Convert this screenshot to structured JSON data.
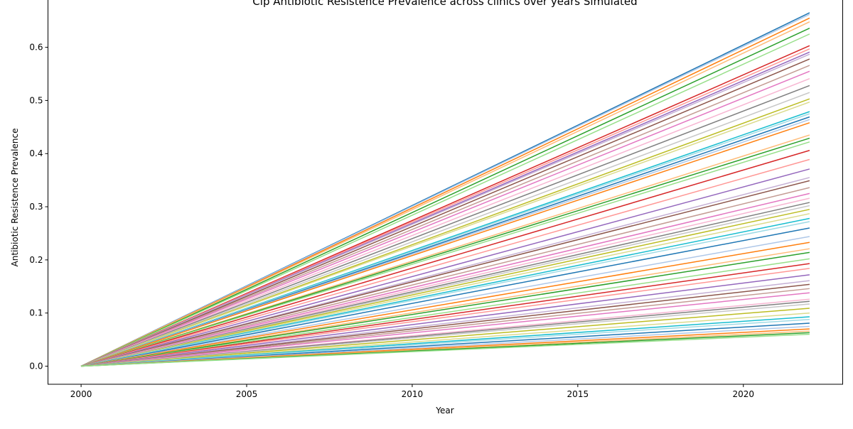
{
  "chart_data": {
    "type": "line",
    "title": "Cip Antibiotic Resistence Prevalence across clinics over years Simulated",
    "xlabel": "Year",
    "ylabel": "Antibiotic Resistence Prevalence",
    "xlim": [
      1999,
      2023
    ],
    "ylim": [
      -0.034,
      0.697
    ],
    "x_ticks": [
      "2000",
      "2005",
      "2010",
      "2015",
      "2020"
    ],
    "y_ticks": [
      "0.0",
      "0.1",
      "0.2",
      "0.3",
      "0.4",
      "0.5",
      "0.6"
    ],
    "x": [
      2000,
      2022
    ],
    "grid": false,
    "legend": "none",
    "palette": [
      "#1f77b4",
      "#aec7e8",
      "#ff7f0e",
      "#ffbb78",
      "#2ca02c",
      "#98df8a",
      "#d62728",
      "#ff9896",
      "#9467bd",
      "#c5b0d5",
      "#8c564b",
      "#c49c94",
      "#e377c2",
      "#f7b6d2",
      "#7f7f7f",
      "#c7c7c7",
      "#bcbd22",
      "#dbdb8d",
      "#17becf",
      "#9edae5"
    ],
    "series": [
      {
        "values": [
          0,
          0.665
        ]
      },
      {
        "values": [
          0,
          0.662
        ]
      },
      {
        "values": [
          0,
          0.655
        ]
      },
      {
        "values": [
          0,
          0.648
        ]
      },
      {
        "values": [
          0,
          0.636
        ]
      },
      {
        "values": [
          0,
          0.625
        ]
      },
      {
        "values": [
          0,
          0.603
        ]
      },
      {
        "values": [
          0,
          0.597
        ]
      },
      {
        "values": [
          0,
          0.591
        ]
      },
      {
        "values": [
          0,
          0.587
        ]
      },
      {
        "values": [
          0,
          0.578
        ]
      },
      {
        "values": [
          0,
          0.566
        ]
      },
      {
        "values": [
          0,
          0.555
        ]
      },
      {
        "values": [
          0,
          0.541
        ]
      },
      {
        "values": [
          0,
          0.528
        ]
      },
      {
        "values": [
          0,
          0.515
        ]
      },
      {
        "values": [
          0,
          0.503
        ]
      },
      {
        "values": [
          0,
          0.497
        ]
      },
      {
        "values": [
          0,
          0.479
        ]
      },
      {
        "values": [
          0,
          0.475
        ]
      },
      {
        "values": [
          0,
          0.469
        ]
      },
      {
        "values": [
          0,
          0.464
        ]
      },
      {
        "values": [
          0,
          0.458
        ]
      },
      {
        "values": [
          0,
          0.435
        ]
      },
      {
        "values": [
          0,
          0.429
        ]
      },
      {
        "values": [
          0,
          0.422
        ]
      },
      {
        "values": [
          0,
          0.406
        ]
      },
      {
        "values": [
          0,
          0.389
        ]
      },
      {
        "values": [
          0,
          0.371
        ]
      },
      {
        "values": [
          0,
          0.355
        ]
      },
      {
        "values": [
          0,
          0.349
        ]
      },
      {
        "values": [
          0,
          0.336
        ]
      },
      {
        "values": [
          0,
          0.325
        ]
      },
      {
        "values": [
          0,
          0.316
        ]
      },
      {
        "values": [
          0,
          0.308
        ]
      },
      {
        "values": [
          0,
          0.302
        ]
      },
      {
        "values": [
          0,
          0.295
        ]
      },
      {
        "values": [
          0,
          0.287
        ]
      },
      {
        "values": [
          0,
          0.278
        ]
      },
      {
        "values": [
          0,
          0.272
        ]
      },
      {
        "values": [
          0,
          0.26
        ]
      },
      {
        "values": [
          0,
          0.244
        ]
      },
      {
        "values": [
          0,
          0.233
        ]
      },
      {
        "values": [
          0,
          0.221
        ]
      },
      {
        "values": [
          0,
          0.214
        ]
      },
      {
        "values": [
          0,
          0.202
        ]
      },
      {
        "values": [
          0,
          0.193
        ]
      },
      {
        "values": [
          0,
          0.184
        ]
      },
      {
        "values": [
          0,
          0.172
        ]
      },
      {
        "values": [
          0,
          0.161
        ]
      },
      {
        "values": [
          0,
          0.154
        ]
      },
      {
        "values": [
          0,
          0.146
        ]
      },
      {
        "values": [
          0,
          0.138
        ]
      },
      {
        "values": [
          0,
          0.126
        ]
      },
      {
        "values": [
          0,
          0.122
        ]
      },
      {
        "values": [
          0,
          0.117
        ]
      },
      {
        "values": [
          0,
          0.109
        ]
      },
      {
        "values": [
          0,
          0.1
        ]
      },
      {
        "values": [
          0,
          0.093
        ]
      },
      {
        "values": [
          0,
          0.088
        ]
      },
      {
        "values": [
          0,
          0.081
        ]
      },
      {
        "values": [
          0,
          0.075
        ]
      },
      {
        "values": [
          0,
          0.07
        ]
      },
      {
        "values": [
          0,
          0.066
        ]
      },
      {
        "values": [
          0,
          0.063
        ]
      },
      {
        "values": [
          0,
          0.06
        ]
      }
    ]
  }
}
